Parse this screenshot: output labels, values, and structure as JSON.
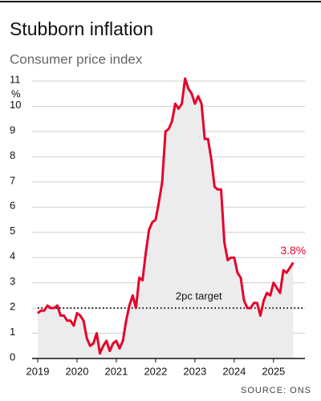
{
  "chart_data": {
    "type": "line",
    "title": "Stubborn inflation",
    "subtitle": "Consumer price index",
    "y_unit": "%",
    "source": "SOURCE: ONS",
    "x": [
      2019,
      2019.083,
      2019.167,
      2019.25,
      2019.333,
      2019.417,
      2019.5,
      2019.583,
      2019.667,
      2019.75,
      2019.833,
      2019.917,
      2020,
      2020.083,
      2020.167,
      2020.25,
      2020.333,
      2020.417,
      2020.5,
      2020.583,
      2020.667,
      2020.75,
      2020.833,
      2020.917,
      2021,
      2021.083,
      2021.167,
      2021.25,
      2021.333,
      2021.417,
      2021.5,
      2021.583,
      2021.667,
      2021.75,
      2021.833,
      2021.917,
      2022,
      2022.083,
      2022.167,
      2022.25,
      2022.333,
      2022.417,
      2022.5,
      2022.583,
      2022.667,
      2022.75,
      2022.833,
      2022.917,
      2023,
      2023.083,
      2023.167,
      2023.25,
      2023.333,
      2023.417,
      2023.5,
      2023.583,
      2023.667,
      2023.75,
      2023.833,
      2023.917,
      2024,
      2024.083,
      2024.167,
      2024.25,
      2024.333,
      2024.417,
      2024.5,
      2024.583,
      2024.667,
      2024.75,
      2024.833,
      2024.917,
      2025,
      2025.083,
      2025.167,
      2025.25,
      2025.333,
      2025.417,
      2025.5
    ],
    "series": [
      {
        "name": "CPI",
        "color": "#e4032b",
        "values": [
          1.8,
          1.9,
          1.9,
          2.1,
          2.0,
          2.0,
          2.1,
          1.7,
          1.7,
          1.5,
          1.5,
          1.3,
          1.8,
          1.7,
          1.5,
          0.8,
          0.5,
          0.6,
          1.0,
          0.2,
          0.5,
          0.7,
          0.3,
          0.6,
          0.7,
          0.4,
          0.7,
          1.5,
          2.1,
          2.5,
          2.0,
          3.2,
          3.1,
          4.2,
          5.1,
          5.4,
          5.5,
          6.2,
          7.0,
          9.0,
          9.1,
          9.4,
          10.1,
          9.9,
          10.1,
          11.1,
          10.7,
          10.5,
          10.1,
          10.4,
          10.1,
          8.7,
          8.7,
          7.9,
          6.8,
          6.7,
          6.7,
          4.6,
          3.9,
          4.0,
          4.0,
          3.4,
          3.2,
          2.3,
          2.0,
          2.0,
          2.2,
          2.2,
          1.7,
          2.3,
          2.6,
          2.5,
          3.0,
          2.8,
          2.6,
          3.5,
          3.4,
          3.6,
          3.8
        ],
        "end_label": "3.8%"
      }
    ],
    "area_color": "#ececec",
    "target": {
      "value": 2,
      "label": "2pc target"
    },
    "xlim": [
      2019,
      2025.8
    ],
    "xticks": [
      2019,
      2020,
      2021,
      2022,
      2023,
      2024,
      2025
    ],
    "ylim": [
      0,
      11
    ],
    "yticks": [
      0,
      1,
      2,
      3,
      4,
      5,
      6,
      7,
      8,
      9,
      10,
      11
    ],
    "grid": true
  }
}
